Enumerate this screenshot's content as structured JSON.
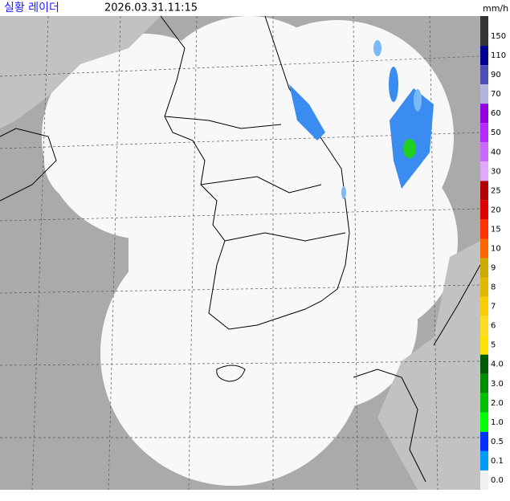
{
  "header": {
    "title": "실황 레이더",
    "timestamp": "2026.03.31.11:15"
  },
  "legend": {
    "unit": "mm/h",
    "items": [
      {
        "label": "150",
        "color": "#333333"
      },
      {
        "label": "110",
        "color": "#000390"
      },
      {
        "label": "90",
        "color": "#4c4eb1"
      },
      {
        "label": "70",
        "color": "#b3b4de"
      },
      {
        "label": "60",
        "color": "#9300e4"
      },
      {
        "label": "50",
        "color": "#b329ff"
      },
      {
        "label": "40",
        "color": "#c969ff"
      },
      {
        "label": "30",
        "color": "#e0a9ff"
      },
      {
        "label": "25",
        "color": "#b40000"
      },
      {
        "label": "20",
        "color": "#e00000"
      },
      {
        "label": "15",
        "color": "#ff3200"
      },
      {
        "label": "10",
        "color": "#ff6600"
      },
      {
        "label": "9",
        "color": "#ccaa00"
      },
      {
        "label": "8",
        "color": "#e0b900"
      },
      {
        "label": "7",
        "color": "#f9cd00"
      },
      {
        "label": "6",
        "color": "#ffdc1f"
      },
      {
        "label": "5",
        "color": "#ffe100"
      },
      {
        "label": "4.0",
        "color": "#005a00"
      },
      {
        "label": "3.0",
        "color": "#008c00"
      },
      {
        "label": "2.0",
        "color": "#00be00"
      },
      {
        "label": "1.0",
        "color": "#00ff00"
      },
      {
        "label": "0.5",
        "color": "#0033ff"
      },
      {
        "label": "0.1",
        "color": "#009bf5"
      },
      {
        "label": "0.0",
        "color": "#f0f0f0"
      }
    ]
  }
}
